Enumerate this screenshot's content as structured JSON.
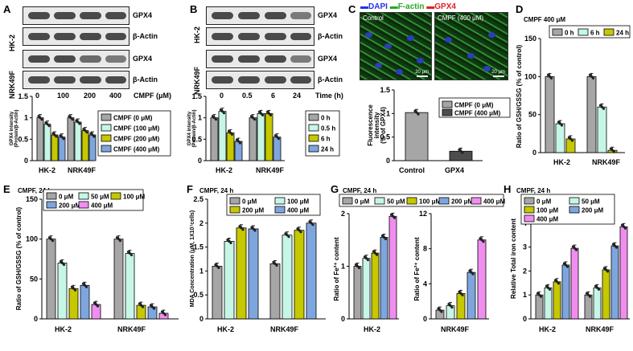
{
  "panels": {
    "A": {
      "label": "A",
      "rows": [
        "HK-2",
        "NRK49F"
      ],
      "proteins": [
        "GPX4",
        "β-Actin",
        "GPX4",
        "β-Actin"
      ],
      "conditions": [
        "0",
        "100",
        "200",
        "400",
        "CMPF (μM)"
      ],
      "ylabel": "GPX4 intensity\n(Protein/β-Actin)",
      "groups": [
        "HK-2",
        "NRK49F"
      ],
      "legend": [
        "CMPF (0 μM)",
        "CMPF (100 μM)",
        "CMPF (200 μM)",
        "CMPF (400 μM)"
      ]
    },
    "B": {
      "label": "B",
      "rows": [
        "HK-2",
        "NRK49F"
      ],
      "proteins": [
        "GPX4",
        "β-Actin",
        "GPX4",
        "β-Actin"
      ],
      "conditions": [
        "0",
        "0.5",
        "6",
        "24",
        "Time (h)"
      ],
      "ylabel": "GPX4 intensity\n(Protein/β-Actin)",
      "groups": [
        "HK-2",
        "NRK49F"
      ],
      "legend": [
        "0 h",
        "0.5 h",
        "6 h",
        "24 h"
      ]
    },
    "C": {
      "label": "C",
      "stain_dapi": "DAPI",
      "stain_factin": "F-actin",
      "stain_gpx4": "GPX4",
      "img1_label": "Control",
      "img2_label": "CMPF (400 μM)",
      "scalebar": "20 μm",
      "ylabel": "Fluorescence intensity\n(% of GPX4)",
      "categories": [
        "Control",
        "GPX4"
      ],
      "legend": [
        "CMPF (0 μM)",
        "CMPF (400 μM)"
      ]
    },
    "D": {
      "label": "D",
      "title": "CMPF 400 μM",
      "legend": [
        "0 h",
        "6 h",
        "24 h"
      ],
      "ylabel": "Ratio of GSH/GSSG  (% of control)",
      "groups": [
        "HK-2",
        "NRK49F"
      ]
    },
    "E": {
      "label": "E",
      "title": "CMPF, 24 h",
      "legend": [
        "0 μM",
        "50 μM",
        "100 μM",
        "200 μM",
        "400 μM"
      ],
      "ylabel": "Ratio of GSH/GSSG  (% of control)",
      "groups": [
        "HK-2",
        "NRK49F"
      ]
    },
    "F": {
      "label": "F",
      "title": "CMPF, 24 h",
      "legend": [
        "0 μM",
        "100 μM",
        "200 μM",
        "400 μM"
      ],
      "ylabel": "MDA Concentration (μM, 1X10⁷cells)",
      "groups": [
        "HK-2",
        "NRK49F"
      ]
    },
    "G": {
      "label": "G",
      "title": "CMPF, 24 h",
      "legend": [
        "0 μM",
        "50 μM",
        "100 μM",
        "200 μM",
        "400 μM"
      ],
      "ylabel": "Ratio of Fe²⁺ content",
      "groups": [
        "HK-2",
        "NRK49F"
      ]
    },
    "H": {
      "label": "H",
      "title": "CMPF, 24 h",
      "legend": [
        "0 μM",
        "50 μM",
        "100 μM",
        "200 μM",
        "400 μM"
      ],
      "ylabel": "Relative Total iron content",
      "groups": [
        "HK-2",
        "NRK49F"
      ]
    }
  },
  "colors": {
    "c0": "#a6a6a6",
    "c1": "#c6f6e6",
    "c2": "#c6c800",
    "c3": "#7ea6de",
    "c4": "#f08ef0",
    "dark": "#4d4d4d"
  },
  "chart_data": [
    {
      "panel": "A",
      "type": "bar",
      "categories": [
        "HK-2",
        "NRK49F"
      ],
      "ylim": [
        0,
        1.5
      ],
      "yticks": [
        0,
        0.5,
        1,
        1.5
      ],
      "series": [
        {
          "name": "CMPF (0 μM)",
          "values": [
            1.0,
            1.0
          ]
        },
        {
          "name": "CMPF (100 μM)",
          "values": [
            0.85,
            0.9
          ]
        },
        {
          "name": "CMPF (200 μM)",
          "values": [
            0.6,
            0.7
          ]
        },
        {
          "name": "CMPF (400 μM)",
          "values": [
            0.55,
            0.6
          ]
        }
      ],
      "marks": [
        [
          "",
          "",
          ""
        ],
        [
          "*",
          "#",
          "#"
        ]
      ]
    },
    {
      "panel": "B",
      "type": "bar",
      "categories": [
        "HK-2",
        "NRK49F"
      ],
      "ylim": [
        0,
        1.5
      ],
      "yticks": [
        0,
        0.5,
        1,
        1.5
      ],
      "series": [
        {
          "name": "0 h",
          "values": [
            1.0,
            1.0
          ]
        },
        {
          "name": "0.5 h",
          "values": [
            1.15,
            1.1
          ]
        },
        {
          "name": "6 h",
          "values": [
            0.65,
            1.1
          ]
        },
        {
          "name": "24 h",
          "values": [
            0.45,
            0.55
          ]
        }
      ]
    },
    {
      "panel": "C",
      "type": "bar",
      "categories": [
        "Control",
        "GPX4"
      ],
      "ylim": [
        0,
        1.5
      ],
      "yticks": [
        0,
        0.5,
        1,
        1.5
      ],
      "series": [
        {
          "name": "CMPF (0 μM)",
          "values": [
            1.02,
            null
          ]
        },
        {
          "name": "CMPF (400 μM)",
          "values": [
            null,
            0.2
          ]
        }
      ]
    },
    {
      "panel": "D",
      "type": "bar",
      "categories": [
        "HK-2",
        "NRK49F"
      ],
      "ylim": [
        0,
        150
      ],
      "yticks": [
        0,
        50,
        100,
        150
      ],
      "series": [
        {
          "name": "0 h",
          "values": [
            100,
            100
          ]
        },
        {
          "name": "6 h",
          "values": [
            38,
            60
          ]
        },
        {
          "name": "24 h",
          "values": [
            18,
            3
          ]
        }
      ]
    },
    {
      "panel": "E",
      "type": "bar",
      "categories": [
        "HK-2",
        "NRK49F"
      ],
      "ylim": [
        0,
        150
      ],
      "yticks": [
        0,
        50,
        100,
        150
      ],
      "series": [
        {
          "name": "0 μM",
          "values": [
            100,
            100
          ]
        },
        {
          "name": "50 μM",
          "values": [
            70,
            82
          ]
        },
        {
          "name": "100 μM",
          "values": [
            38,
            17
          ]
        },
        {
          "name": "200 μM",
          "values": [
            42,
            15
          ]
        },
        {
          "name": "400 μM",
          "values": [
            18,
            7
          ]
        }
      ]
    },
    {
      "panel": "F",
      "type": "bar",
      "categories": [
        "HK-2",
        "NRK49F"
      ],
      "ylim": [
        0,
        2.5
      ],
      "yticks": [
        0,
        0.5,
        1,
        1.5,
        2,
        2.5
      ],
      "series": [
        {
          "name": "0 μM",
          "values": [
            1.1,
            1.15
          ]
        },
        {
          "name": "100 μM",
          "values": [
            1.62,
            1.75
          ]
        },
        {
          "name": "200 μM",
          "values": [
            1.9,
            1.85
          ]
        },
        {
          "name": "400 μM",
          "values": [
            1.88,
            2.0
          ]
        }
      ]
    },
    {
      "panel": "G-left",
      "type": "bar",
      "categories": [
        "HK-2"
      ],
      "ylim": [
        0,
        2
      ],
      "yticks": [
        0,
        1,
        2
      ],
      "series": [
        {
          "name": "0 μM",
          "values": [
            1.0
          ]
        },
        {
          "name": "50 μM",
          "values": [
            1.15
          ]
        },
        {
          "name": "100 μM",
          "values": [
            1.25
          ]
        },
        {
          "name": "200 μM",
          "values": [
            1.55
          ]
        },
        {
          "name": "400 μM",
          "values": [
            1.95
          ]
        }
      ]
    },
    {
      "panel": "G-right",
      "type": "bar",
      "categories": [
        "NRK49F"
      ],
      "ylim": [
        0,
        12
      ],
      "yticks": [
        0,
        4,
        8,
        12
      ],
      "series": [
        {
          "name": "0 μM",
          "values": [
            1.0
          ]
        },
        {
          "name": "50 μM",
          "values": [
            1.5
          ]
        },
        {
          "name": "100 μM",
          "values": [
            2.9
          ]
        },
        {
          "name": "200 μM",
          "values": [
            5.3
          ]
        },
        {
          "name": "400 μM",
          "values": [
            9.0
          ]
        }
      ]
    },
    {
      "panel": "H",
      "type": "bar",
      "categories": [
        "HK-2",
        "NRK49F"
      ],
      "ylim": [
        0,
        5
      ],
      "yticks": [
        0,
        1,
        2,
        3,
        4,
        5
      ],
      "series": [
        {
          "name": "0 μM",
          "values": [
            1.0,
            1.0
          ]
        },
        {
          "name": "50 μM",
          "values": [
            1.3,
            1.3
          ]
        },
        {
          "name": "100 μM",
          "values": [
            1.55,
            2.05
          ]
        },
        {
          "name": "200 μM",
          "values": [
            2.25,
            3.05
          ]
        },
        {
          "name": "400 μM",
          "values": [
            2.95,
            3.85
          ]
        }
      ]
    }
  ]
}
